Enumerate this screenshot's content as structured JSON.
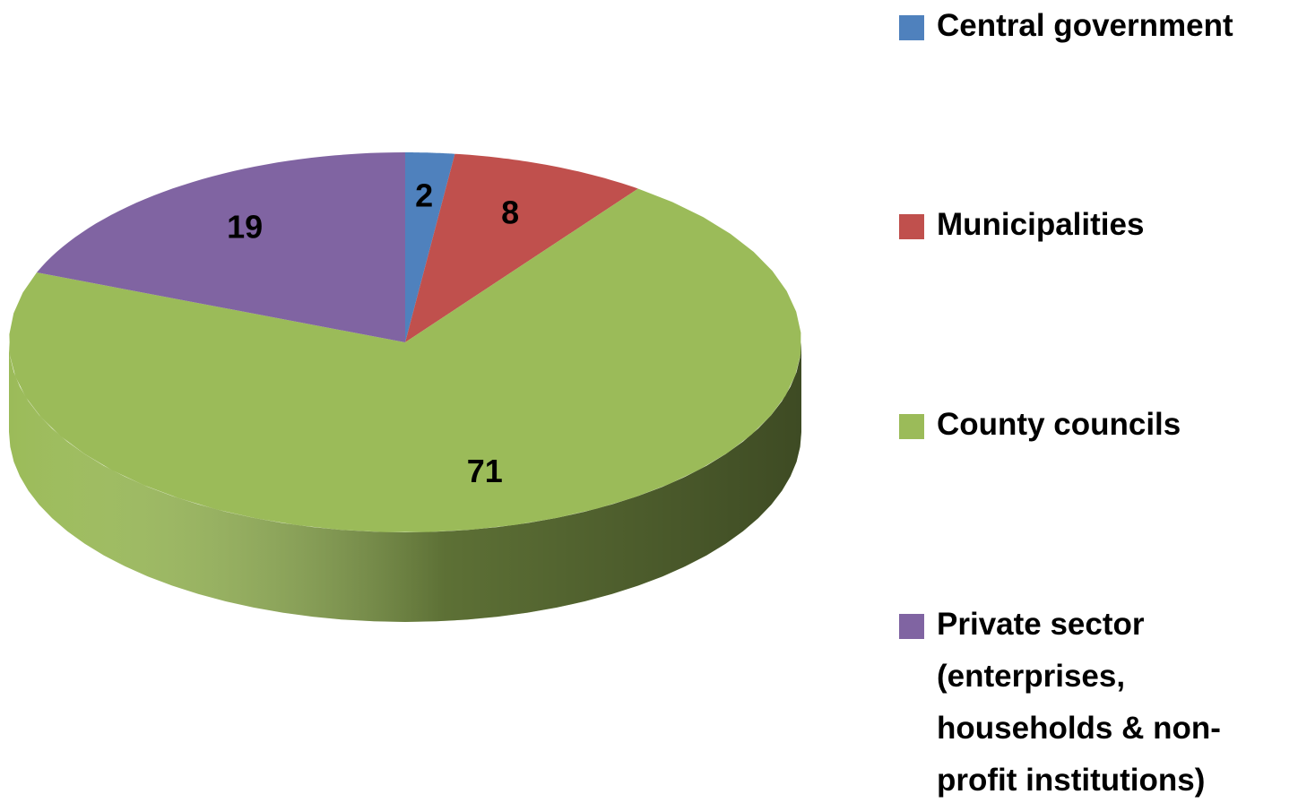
{
  "chart_data": {
    "type": "pie3d",
    "categories": [
      "Central government",
      "Municipalities",
      "County councils",
      "Private sector (enterprises, households & non-profit institutions)"
    ],
    "values": [
      2,
      8,
      71,
      19
    ],
    "colors": [
      "#4f81bd",
      "#c0504d",
      "#9bbb59",
      "#8064a2"
    ],
    "legend": "right"
  }
}
